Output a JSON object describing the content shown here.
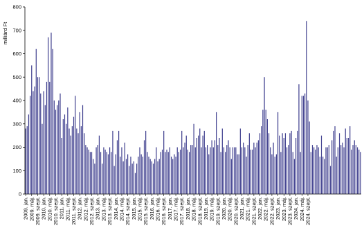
{
  "chart_data": {
    "type": "bar",
    "ylabel": "milliárd Ft",
    "ylim": [
      0,
      800
    ],
    "yticks": [
      0,
      100,
      200,
      300,
      400,
      500,
      600,
      700,
      800
    ],
    "grid": false,
    "legend": "none",
    "bar_color": "#3b3b8c",
    "x_labels": [
      "2009. jan.",
      "2009. máj.",
      "2009. szept.",
      "2010. jan.",
      "2010. máj.",
      "2010. szept.",
      "2011. jan.",
      "2011. máj.",
      "2011. szept.",
      "2012. jan.",
      "2012. máj.",
      "2012. szept.",
      "2013. jan.",
      "2013. máj.",
      "2013. szept.",
      "2014. jan.",
      "2014. máj.",
      "2014. szept.",
      "2015. jan.",
      "2015. máj.",
      "2015. szept.",
      "2016. jan.",
      "2016. máj.",
      "2016. szept.",
      "2017. jan.",
      "2017. máj.",
      "2017. szept.",
      "2018. jan.",
      "2018. máj.",
      "2018. szept.",
      "2019. jan.",
      "2019. máj.",
      "2019. szept.",
      "2020. jan.",
      "2020. máj.",
      "2020. szept.",
      "2021. jan.",
      "2021. máj.",
      "2021. szept.",
      "2022. jan.",
      "2022. máj.",
      "2022. szept.",
      "2023. jan.",
      "2023. máj.",
      "2023. szept.",
      "2024. jan.",
      "2024. máj.",
      "2024. szept."
    ],
    "values": [
      280,
      290,
      340,
      420,
      550,
      440,
      460,
      620,
      500,
      500,
      430,
      300,
      440,
      380,
      480,
      670,
      480,
      690,
      620,
      400,
      360,
      380,
      400,
      430,
      240,
      320,
      340,
      300,
      370,
      280,
      250,
      290,
      330,
      420,
      280,
      260,
      350,
      290,
      380,
      260,
      210,
      200,
      190,
      180,
      180,
      150,
      130,
      200,
      210,
      250,
      180,
      130,
      200,
      190,
      180,
      170,
      200,
      180,
      270,
      120,
      170,
      230,
      270,
      160,
      200,
      140,
      220,
      150,
      170,
      120,
      160,
      130,
      140,
      90,
      130,
      160,
      200,
      170,
      160,
      230,
      270,
      180,
      160,
      150,
      140,
      130,
      150,
      200,
      140,
      150,
      180,
      190,
      270,
      180,
      190,
      180,
      200,
      160,
      150,
      170,
      160,
      200,
      180,
      190,
      270,
      200,
      220,
      250,
      190,
      180,
      210,
      210,
      300,
      200,
      240,
      250,
      280,
      200,
      250,
      270,
      200,
      210,
      170,
      200,
      230,
      200,
      230,
      350,
      210,
      240,
      180,
      280,
      200,
      180,
      210,
      230,
      200,
      150,
      200,
      200,
      200,
      170,
      170,
      280,
      200,
      220,
      200,
      160,
      210,
      260,
      190,
      190,
      220,
      200,
      220,
      230,
      260,
      290,
      360,
      500,
      360,
      320,
      260,
      200,
      170,
      220,
      160,
      170,
      350,
      250,
      180,
      260,
      240,
      260,
      200,
      210,
      260,
      270,
      180,
      150,
      240,
      270,
      470,
      180,
      420,
      420,
      430,
      740,
      400,
      310,
      180,
      210,
      200,
      190,
      210,
      200,
      160,
      250,
      160,
      150,
      200,
      200,
      210,
      120,
      230,
      270,
      290,
      160,
      200,
      260,
      210,
      220,
      200,
      280,
      240,
      240,
      290,
      190,
      210,
      230,
      210,
      200,
      190,
      180
    ]
  }
}
